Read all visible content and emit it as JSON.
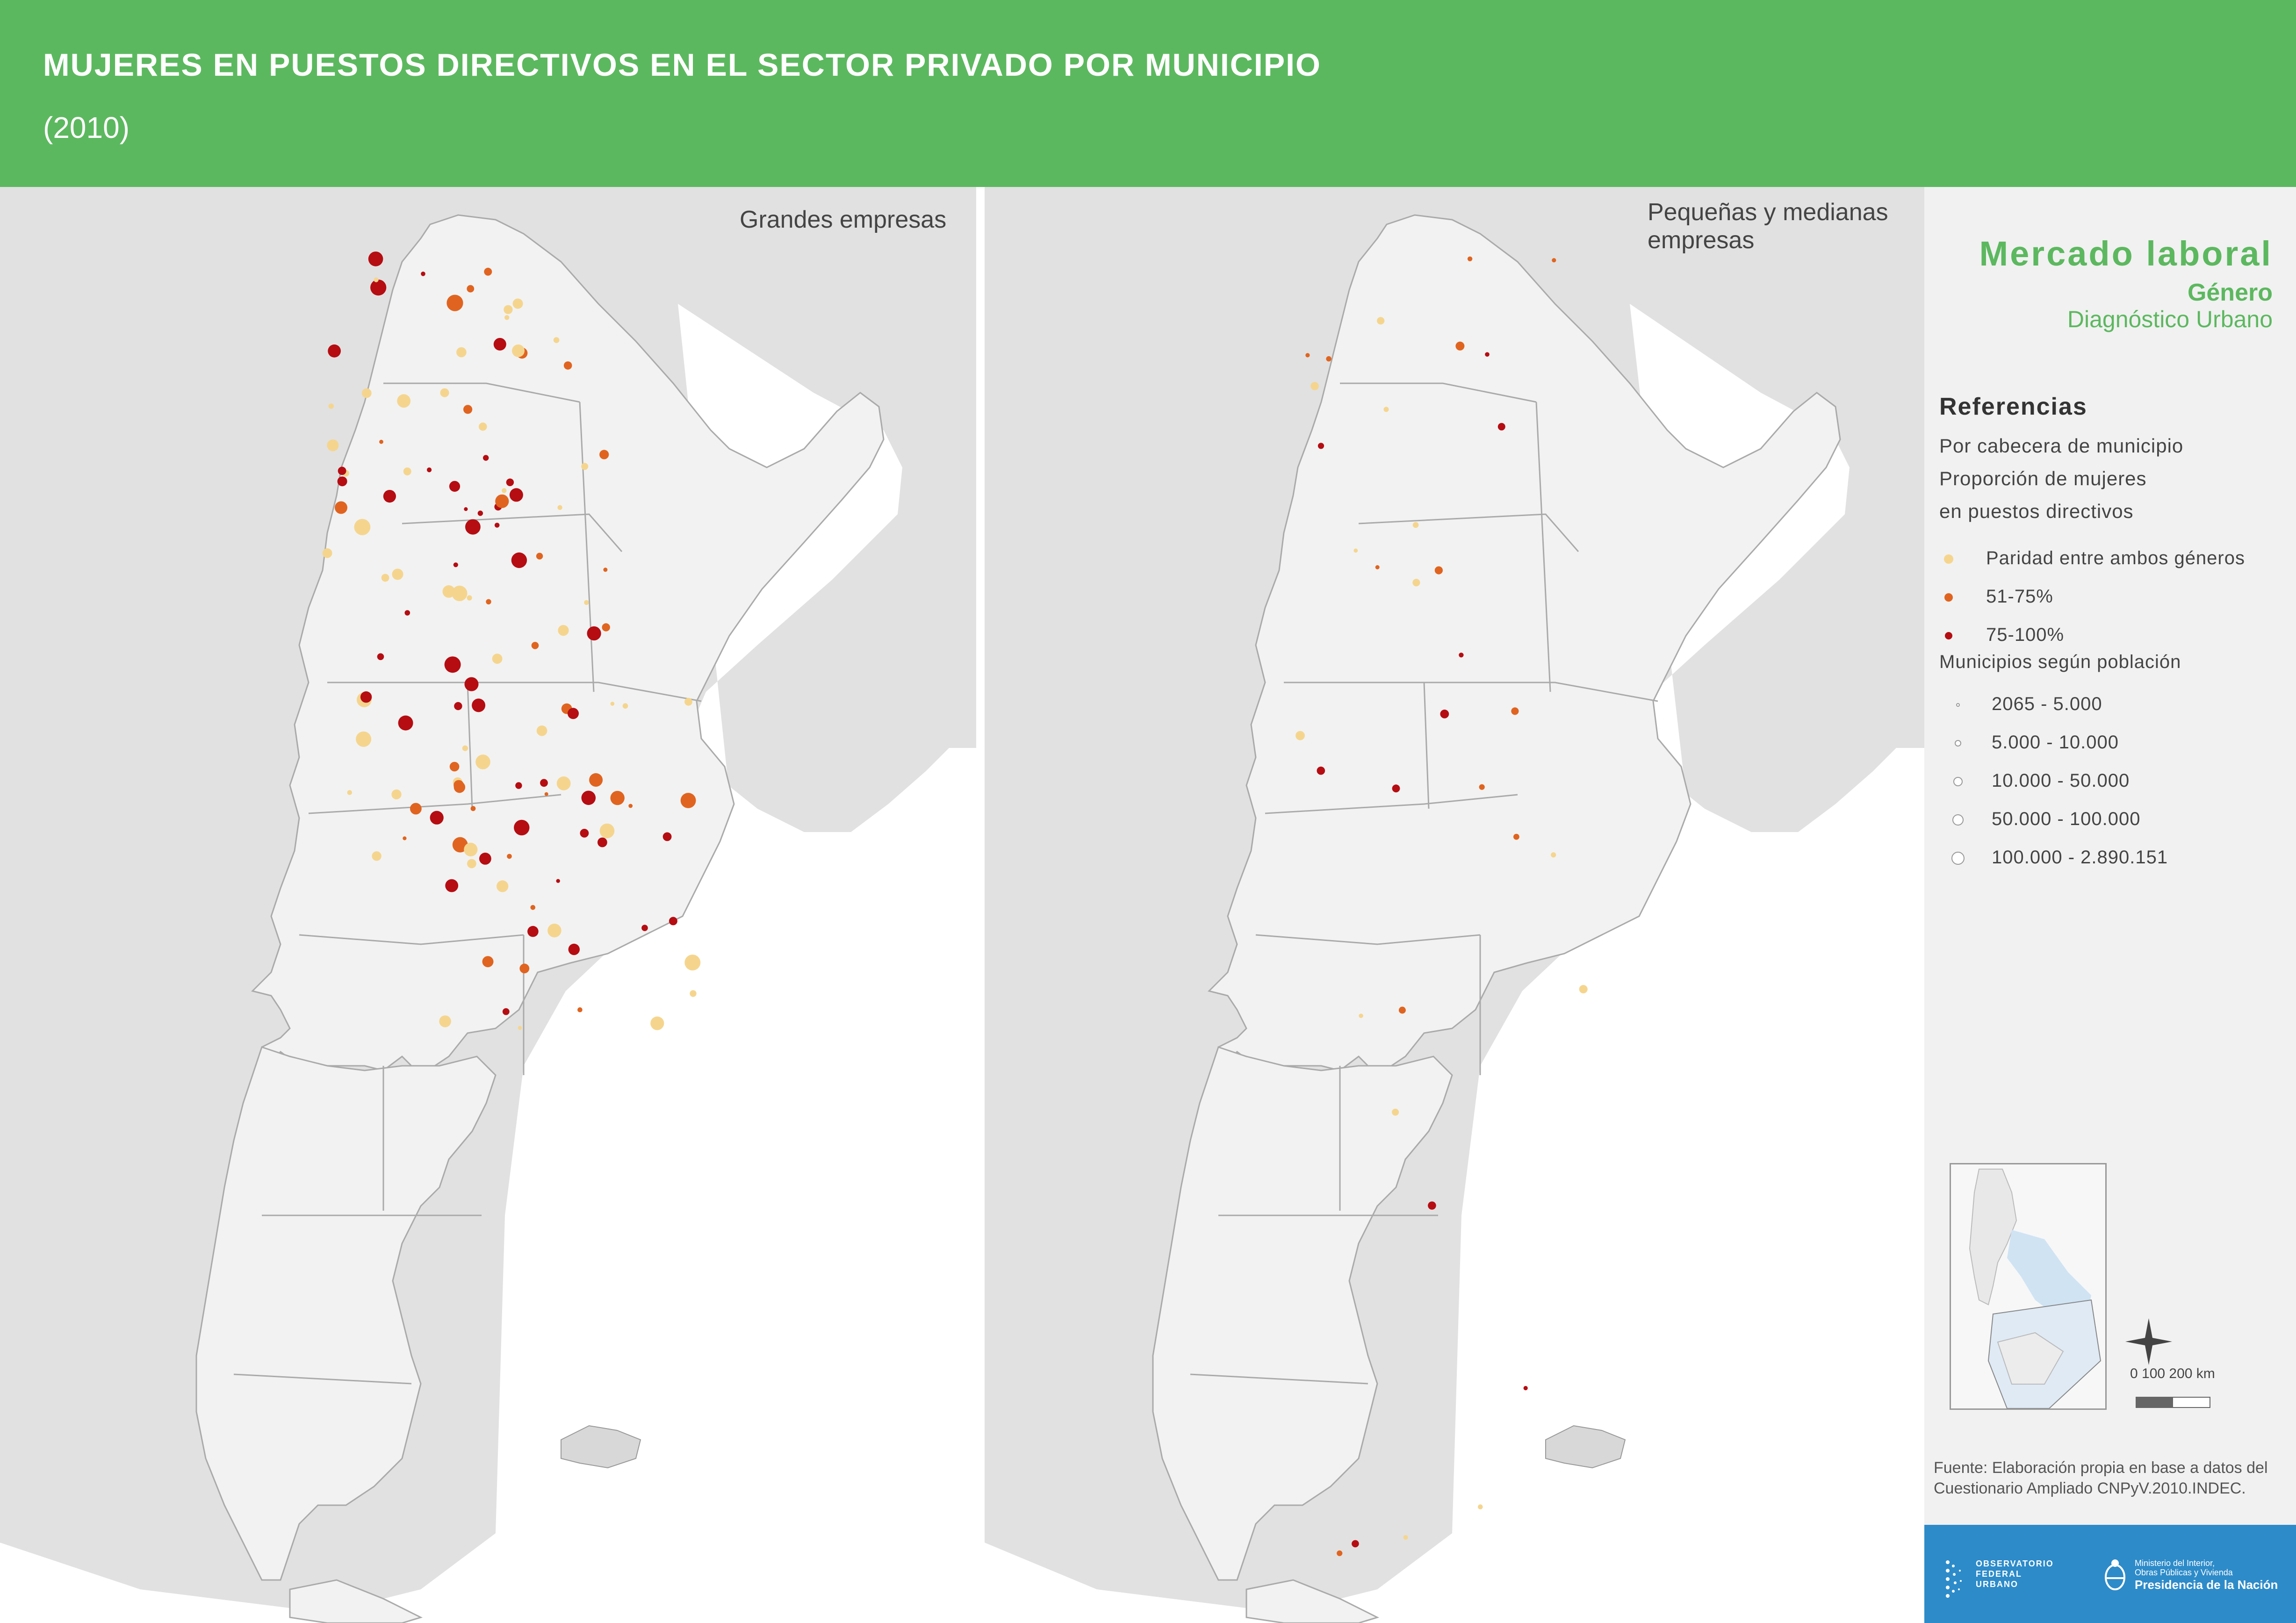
{
  "header": {
    "title": "MUJERES EN PUESTOS DIRECTIVOS EN EL SECTOR PRIVADO POR MUNICIPIO",
    "subtitle": "(2010)",
    "color": "#5cb85f"
  },
  "maps": {
    "left_label": "Grandes empresas",
    "right_label_line1": "Pequeñas y medianas",
    "right_label_line2": "empresas"
  },
  "sidebar": {
    "title": "Mercado laboral",
    "subtitle": "Género",
    "subtitle2": "Diagnóstico Urbano",
    "references_title": "Referencias",
    "ref_line1": "Por cabecera de municipio",
    "ref_line2": "Proporción de mujeres",
    "ref_line3": "en puestos directivos",
    "proportion_legend": [
      {
        "label": "Paridad entre ambos géneros",
        "color": "#f5d58e"
      },
      {
        "label": "51-75%",
        "color": "#e0641f"
      },
      {
        "label": "75-100%",
        "color": "#b50d12"
      }
    ],
    "population_title": "Municipios según población",
    "population_legend": [
      {
        "label": "2065 - 5.000"
      },
      {
        "label": "5.000 - 10.000"
      },
      {
        "label": "10.000 - 50.000"
      },
      {
        "label": "50.000 - 100.000"
      },
      {
        "label": "100.000 - 2.890.151"
      }
    ],
    "scale_text": "0     100   200 km",
    "source": "Fuente: Elaboración propia en base a datos del Cuestionario Ampliado CNPyV.2010.INDEC."
  },
  "footer": {
    "obs_line1": "OBSERVATORIO",
    "obs_line2": "FEDERAL",
    "obs_line3": "URBANO",
    "min_line1": "Ministerio del Interior,",
    "min_line2": "Obras Públicas y Vivienda",
    "min_line3": "Presidencia de la Nación",
    "color": "#2d8bc9"
  }
}
